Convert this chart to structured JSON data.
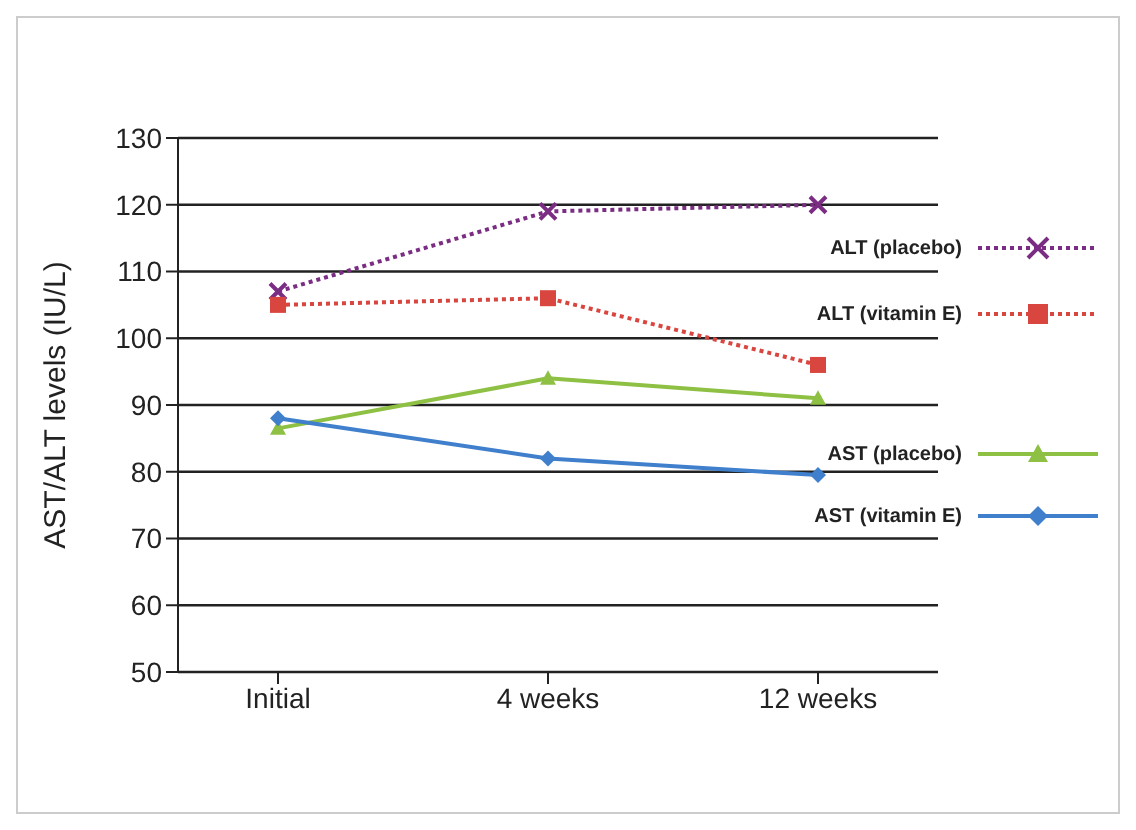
{
  "chart_data": {
    "type": "line",
    "ylabel": "AST/ALT levels (IU/L)",
    "categories": [
      "Initial",
      "4 weeks",
      "12 weeks"
    ],
    "series": [
      {
        "name": "ALT (placebo)",
        "color": "#7b2c83",
        "values": [
          107,
          119,
          120
        ],
        "marker": "cross",
        "line_style": "dotted"
      },
      {
        "name": "ALT (vitamin E)",
        "color": "#d9463f",
        "values": [
          105,
          106,
          96
        ],
        "marker": "square",
        "line_style": "dotted"
      },
      {
        "name": "AST (placebo)",
        "color": "#8dc043",
        "values": [
          86.5,
          94,
          91
        ],
        "marker": "triangle",
        "line_style": "solid"
      },
      {
        "name": "AST (vitamin E)",
        "color": "#3f7fcc",
        "values": [
          88,
          82,
          79.5
        ],
        "marker": "diamond",
        "line_style": "solid"
      }
    ],
    "ylim": [
      50,
      130
    ],
    "yticks": [
      50,
      60,
      70,
      80,
      90,
      100,
      110,
      120,
      130
    ],
    "grid": "y",
    "legend": "right"
  }
}
